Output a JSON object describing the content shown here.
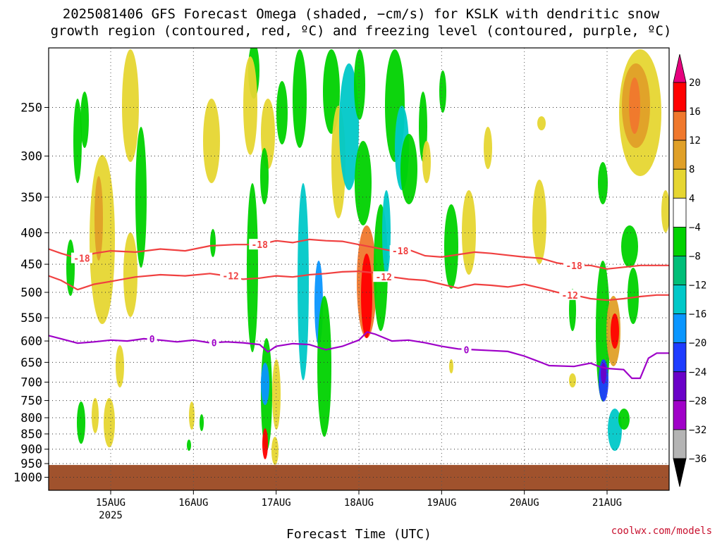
{
  "title_line1": "2025081406 GFS Forecast Omega (shaded, −cm/s) for KSLK with dendritic snow",
  "title_line2": "growth region (contoured, red, ºC) and freezing level (contoured, purple, ºC)",
  "credit": "coolwx.com/models",
  "chart_data": {
    "type": "heatmap",
    "xlabel": "Forecast Time (UTC)",
    "ylabel": "",
    "x_ticks": [
      "15AUG",
      "16AUG",
      "17AUG",
      "18AUG",
      "19AUG",
      "20AUG",
      "21AUG"
    ],
    "x_year_label": "2025",
    "xlim_days": [
      14.25,
      21.75
    ],
    "y_ticks": [
      250,
      300,
      350,
      400,
      450,
      500,
      550,
      600,
      650,
      700,
      750,
      800,
      850,
      900,
      950,
      1000
    ],
    "ylim": [
      1050,
      200
    ],
    "y_scale": "log",
    "grid": true,
    "colorbar": {
      "levels": [
        -36,
        -32,
        -28,
        -24,
        -20,
        -16,
        -12,
        -8,
        -4,
        4,
        8,
        12,
        16,
        20
      ],
      "labels": [
        "20",
        "16",
        "12",
        "8",
        "4",
        "−4",
        "−8",
        "−12",
        "−16",
        "−20",
        "−24",
        "−28",
        "−32",
        "−36"
      ],
      "colors_top_to_bottom": [
        "#ff0000",
        "#f0782d",
        "#e0a028",
        "#e6d632",
        "#ffffff",
        "#00d200",
        "#00be78",
        "#00c8c8",
        "#0a96ff",
        "#1e3cff",
        "#6a00c8",
        "#a000c8",
        "#b4b4b4"
      ],
      "top_arrow_color": "#e6007e",
      "bottom_arrow_color": "#000000"
    },
    "surface_pressure_hpa": 955,
    "surface_color": "#a0522d",
    "contours": [
      {
        "name": "-18",
        "color": "#f04040",
        "label_positions_days": [
          14.65,
          16.8,
          18.5,
          20.6
        ],
        "points": [
          [
            14.25,
            425
          ],
          [
            14.4,
            432
          ],
          [
            14.6,
            440
          ],
          [
            14.8,
            432
          ],
          [
            15.0,
            428
          ],
          [
            15.3,
            430
          ],
          [
            15.6,
            425
          ],
          [
            15.9,
            428
          ],
          [
            16.2,
            420
          ],
          [
            16.5,
            418
          ],
          [
            16.8,
            418
          ],
          [
            17.0,
            412
          ],
          [
            17.2,
            415
          ],
          [
            17.4,
            410
          ],
          [
            17.6,
            412
          ],
          [
            17.8,
            413
          ],
          [
            18.0,
            418
          ],
          [
            18.2,
            423
          ],
          [
            18.4,
            428
          ],
          [
            18.6,
            426
          ],
          [
            18.8,
            436
          ],
          [
            19.0,
            438
          ],
          [
            19.2,
            434
          ],
          [
            19.4,
            430
          ],
          [
            19.6,
            432
          ],
          [
            19.8,
            435
          ],
          [
            20.0,
            438
          ],
          [
            20.2,
            440
          ],
          [
            20.4,
            448
          ],
          [
            20.6,
            452
          ],
          [
            20.8,
            452
          ],
          [
            21.0,
            458
          ],
          [
            21.2,
            455
          ],
          [
            21.4,
            452
          ],
          [
            21.6,
            452
          ],
          [
            21.75,
            452
          ]
        ]
      },
      {
        "name": "-12",
        "color": "#f04040",
        "label_positions_days": [
          16.45,
          18.3,
          20.55
        ],
        "points": [
          [
            14.25,
            470
          ],
          [
            14.4,
            478
          ],
          [
            14.6,
            495
          ],
          [
            14.8,
            485
          ],
          [
            15.0,
            480
          ],
          [
            15.3,
            472
          ],
          [
            15.6,
            468
          ],
          [
            15.9,
            470
          ],
          [
            16.2,
            466
          ],
          [
            16.4,
            470
          ],
          [
            16.6,
            476
          ],
          [
            16.8,
            474
          ],
          [
            17.0,
            470
          ],
          [
            17.2,
            472
          ],
          [
            17.4,
            468
          ],
          [
            17.6,
            466
          ],
          [
            17.8,
            463
          ],
          [
            18.0,
            462
          ],
          [
            18.2,
            465
          ],
          [
            18.4,
            472
          ],
          [
            18.6,
            476
          ],
          [
            18.8,
            478
          ],
          [
            19.0,
            485
          ],
          [
            19.2,
            492
          ],
          [
            19.4,
            485
          ],
          [
            19.6,
            487
          ],
          [
            19.8,
            490
          ],
          [
            20.0,
            485
          ],
          [
            20.2,
            492
          ],
          [
            20.4,
            500
          ],
          [
            20.6,
            505
          ],
          [
            20.8,
            512
          ],
          [
            21.0,
            515
          ],
          [
            21.2,
            512
          ],
          [
            21.4,
            508
          ],
          [
            21.6,
            505
          ],
          [
            21.75,
            505
          ]
        ]
      },
      {
        "name": "0",
        "color": "#9e00c8",
        "label_positions_days": [
          15.5,
          16.25,
          19.3
        ],
        "points": [
          [
            14.25,
            588
          ],
          [
            14.4,
            595
          ],
          [
            14.6,
            605
          ],
          [
            14.8,
            602
          ],
          [
            15.0,
            598
          ],
          [
            15.2,
            600
          ],
          [
            15.4,
            595
          ],
          [
            15.6,
            598
          ],
          [
            15.8,
            602
          ],
          [
            16.0,
            598
          ],
          [
            16.2,
            604
          ],
          [
            16.4,
            602
          ],
          [
            16.6,
            604
          ],
          [
            16.8,
            608
          ],
          [
            16.9,
            625
          ],
          [
            17.0,
            612
          ],
          [
            17.2,
            606
          ],
          [
            17.4,
            608
          ],
          [
            17.6,
            620
          ],
          [
            17.8,
            612
          ],
          [
            18.0,
            598
          ],
          [
            18.1,
            580
          ],
          [
            18.2,
            585
          ],
          [
            18.4,
            600
          ],
          [
            18.6,
            598
          ],
          [
            18.8,
            604
          ],
          [
            19.0,
            612
          ],
          [
            19.2,
            618
          ],
          [
            19.4,
            620
          ],
          [
            19.6,
            622
          ],
          [
            19.8,
            624
          ],
          [
            20.0,
            635
          ],
          [
            20.2,
            650
          ],
          [
            20.3,
            658
          ],
          [
            20.6,
            660
          ],
          [
            20.8,
            652
          ],
          [
            20.9,
            660
          ],
          [
            21.0,
            665
          ],
          [
            21.2,
            668
          ],
          [
            21.3,
            690
          ],
          [
            21.4,
            690
          ],
          [
            21.5,
            640
          ],
          [
            21.6,
            628
          ],
          [
            21.75,
            628
          ]
        ]
      }
    ]
  }
}
